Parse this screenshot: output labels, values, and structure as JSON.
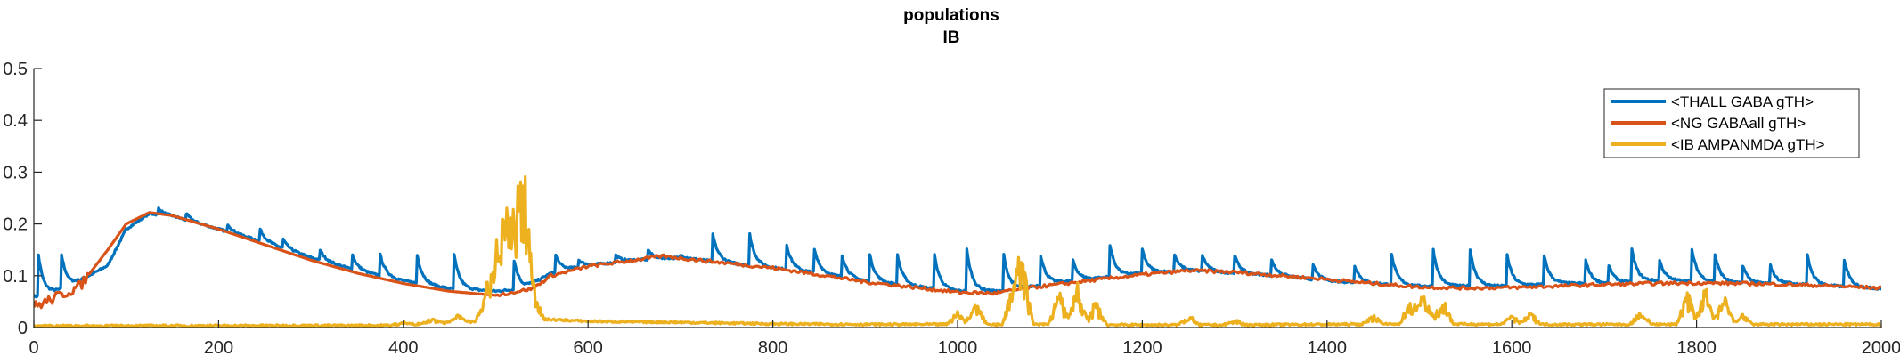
{
  "chart_data": {
    "type": "line",
    "title": "populations",
    "subtitle": "IB",
    "xlabel": "",
    "ylabel": "",
    "xlim": [
      0,
      2000
    ],
    "ylim": [
      0,
      0.5
    ],
    "x_ticks": [
      0,
      200,
      400,
      600,
      800,
      1000,
      1200,
      1400,
      1600,
      1800,
      2000
    ],
    "y_ticks": [
      0,
      0.1,
      0.2,
      0.3,
      0.4,
      0.5
    ],
    "x_tick_labels": [
      "0",
      "200",
      "400",
      "600",
      "800",
      "1000",
      "1200",
      "1400",
      "1600",
      "1800",
      "2000"
    ],
    "y_tick_labels": [
      "0",
      "0.1",
      "0.2",
      "0.3",
      "0.4",
      "0.5"
    ],
    "grid": false,
    "legend_position": "top-right",
    "series": [
      {
        "name": "<THALL GABA gTH>",
        "color": "#0072BD",
        "kind": "baseline_with_spikes",
        "baseline": [
          [
            0,
            0.06
          ],
          [
            10,
            0.06
          ],
          [
            40,
            0.08
          ],
          [
            80,
            0.12
          ],
          [
            100,
            0.19
          ],
          [
            125,
            0.22
          ],
          [
            150,
            0.215
          ],
          [
            200,
            0.19
          ],
          [
            250,
            0.165
          ],
          [
            300,
            0.135
          ],
          [
            350,
            0.11
          ],
          [
            400,
            0.09
          ],
          [
            450,
            0.075
          ],
          [
            500,
            0.07
          ],
          [
            530,
            0.075
          ],
          [
            560,
            0.105
          ],
          [
            600,
            0.12
          ],
          [
            650,
            0.13
          ],
          [
            700,
            0.135
          ],
          [
            750,
            0.125
          ],
          [
            800,
            0.115
          ],
          [
            850,
            0.105
          ],
          [
            900,
            0.09
          ],
          [
            950,
            0.08
          ],
          [
            1000,
            0.07
          ],
          [
            1050,
            0.07
          ],
          [
            1100,
            0.085
          ],
          [
            1150,
            0.095
          ],
          [
            1200,
            0.105
          ],
          [
            1250,
            0.11
          ],
          [
            1300,
            0.105
          ],
          [
            1350,
            0.1
          ],
          [
            1400,
            0.09
          ],
          [
            1450,
            0.085
          ],
          [
            1500,
            0.08
          ],
          [
            1550,
            0.08
          ],
          [
            1600,
            0.08
          ],
          [
            1650,
            0.085
          ],
          [
            1700,
            0.085
          ],
          [
            1750,
            0.09
          ],
          [
            1800,
            0.09
          ],
          [
            1850,
            0.085
          ],
          [
            1900,
            0.085
          ],
          [
            1950,
            0.08
          ],
          [
            2000,
            0.075
          ]
        ],
        "spike_times": [
          5,
          30,
          135,
          165,
          210,
          245,
          270,
          310,
          345,
          375,
          415,
          455,
          520,
          565,
          590,
          630,
          665,
          700,
          735,
          775,
          815,
          845,
          875,
          905,
          935,
          975,
          1010,
          1050,
          1090,
          1125,
          1165,
          1200,
          1235,
          1265,
          1300,
          1340,
          1385,
          1430,
          1470,
          1515,
          1555,
          1595,
          1635,
          1680,
          1705,
          1730,
          1760,
          1795,
          1820,
          1850,
          1880,
          1920,
          1960
        ],
        "spike_peaks": [
          0.14,
          0.14,
          0.23,
          0.22,
          0.2,
          0.19,
          0.17,
          0.15,
          0.14,
          0.14,
          0.14,
          0.14,
          0.13,
          0.14,
          0.13,
          0.14,
          0.15,
          0.14,
          0.18,
          0.18,
          0.16,
          0.15,
          0.14,
          0.14,
          0.14,
          0.14,
          0.15,
          0.14,
          0.14,
          0.13,
          0.16,
          0.15,
          0.14,
          0.14,
          0.14,
          0.13,
          0.12,
          0.12,
          0.14,
          0.15,
          0.15,
          0.14,
          0.14,
          0.13,
          0.12,
          0.15,
          0.13,
          0.15,
          0.14,
          0.12,
          0.12,
          0.14,
          0.13
        ]
      },
      {
        "name": "<NG GABAall gTH>",
        "color": "#D95319",
        "kind": "smooth",
        "points": [
          [
            0,
            0.04
          ],
          [
            20,
            0.055
          ],
          [
            50,
            0.08
          ],
          [
            80,
            0.15
          ],
          [
            100,
            0.2
          ],
          [
            125,
            0.222
          ],
          [
            150,
            0.216
          ],
          [
            200,
            0.19
          ],
          [
            250,
            0.16
          ],
          [
            300,
            0.13
          ],
          [
            350,
            0.105
          ],
          [
            400,
            0.085
          ],
          [
            450,
            0.07
          ],
          [
            500,
            0.062
          ],
          [
            540,
            0.075
          ],
          [
            560,
            0.1
          ],
          [
            600,
            0.118
          ],
          [
            650,
            0.13
          ],
          [
            680,
            0.138
          ],
          [
            720,
            0.13
          ],
          [
            800,
            0.115
          ],
          [
            850,
            0.102
          ],
          [
            900,
            0.088
          ],
          [
            950,
            0.078
          ],
          [
            1000,
            0.068
          ],
          [
            1040,
            0.066
          ],
          [
            1080,
            0.077
          ],
          [
            1150,
            0.092
          ],
          [
            1200,
            0.102
          ],
          [
            1250,
            0.11
          ],
          [
            1300,
            0.107
          ],
          [
            1350,
            0.1
          ],
          [
            1400,
            0.093
          ],
          [
            1450,
            0.085
          ],
          [
            1500,
            0.078
          ],
          [
            1550,
            0.076
          ],
          [
            1600,
            0.077
          ],
          [
            1650,
            0.08
          ],
          [
            1700,
            0.083
          ],
          [
            1750,
            0.085
          ],
          [
            1800,
            0.086
          ],
          [
            1850,
            0.085
          ],
          [
            1900,
            0.083
          ],
          [
            1950,
            0.08
          ],
          [
            2000,
            0.076
          ]
        ]
      },
      {
        "name": "<IB AMPANMDA gTH>",
        "color": "#EDB120",
        "kind": "bursty",
        "baseline": [
          [
            0,
            0.001
          ],
          [
            380,
            0.002
          ],
          [
            480,
            0.01
          ],
          [
            540,
            0.015
          ],
          [
            600,
            0.01
          ],
          [
            700,
            0.008
          ],
          [
            800,
            0.005
          ],
          [
            900,
            0.004
          ],
          [
            1000,
            0.004
          ],
          [
            1100,
            0.004
          ],
          [
            1200,
            0.003
          ],
          [
            1300,
            0.003
          ],
          [
            1400,
            0.004
          ],
          [
            1500,
            0.005
          ],
          [
            1600,
            0.004
          ],
          [
            1700,
            0.004
          ],
          [
            1800,
            0.004
          ],
          [
            1900,
            0.004
          ],
          [
            2000,
            0.004
          ]
        ],
        "bursts": [
          [
            400,
            0.005
          ],
          [
            430,
            0.01
          ],
          [
            460,
            0.015
          ],
          [
            490,
            0.06
          ],
          [
            500,
            0.12
          ],
          [
            510,
            0.24
          ],
          [
            520,
            0.17
          ],
          [
            530,
            0.31
          ],
          [
            540,
            0.08
          ],
          [
            1000,
            0.03
          ],
          [
            1020,
            0.05
          ],
          [
            1060,
            0.11
          ],
          [
            1070,
            0.14
          ],
          [
            1110,
            0.07
          ],
          [
            1130,
            0.08
          ],
          [
            1150,
            0.05
          ],
          [
            1250,
            0.02
          ],
          [
            1300,
            0.01
          ],
          [
            1450,
            0.02
          ],
          [
            1490,
            0.05
          ],
          [
            1505,
            0.07
          ],
          [
            1525,
            0.06
          ],
          [
            1600,
            0.02
          ],
          [
            1620,
            0.025
          ],
          [
            1740,
            0.03
          ],
          [
            1790,
            0.07
          ],
          [
            1810,
            0.08
          ],
          [
            1830,
            0.06
          ],
          [
            1850,
            0.02
          ]
        ]
      }
    ]
  }
}
